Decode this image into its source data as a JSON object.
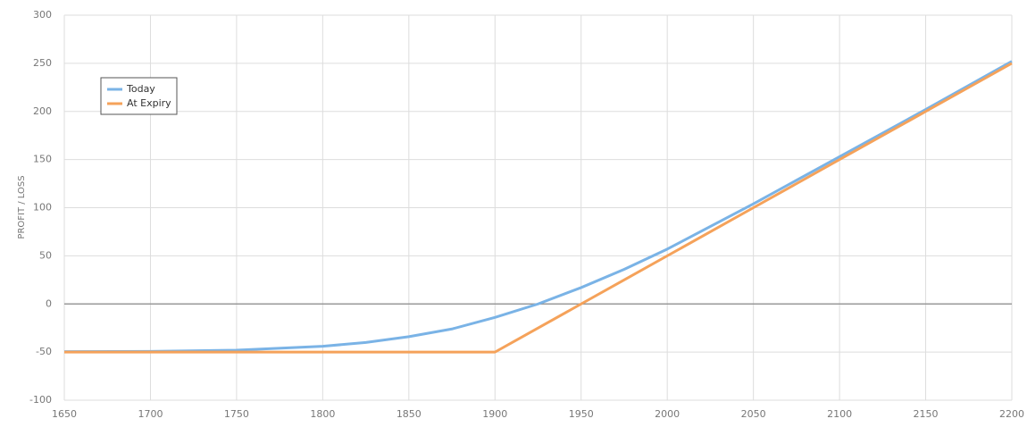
{
  "chart_data": {
    "type": "line",
    "y_label": "PROFIT / LOSS",
    "x": [
      1650,
      1700,
      1750,
      1800,
      1825,
      1850,
      1875,
      1900,
      1925,
      1950,
      1975,
      2000,
      2050,
      2100,
      2150,
      2200
    ],
    "series": [
      {
        "name": "Today",
        "color": "#7ab3e6",
        "values": [
          -49.5,
          -49.3,
          -48,
          -44,
          -40,
          -34,
          -26,
          -14,
          0,
          17,
          36,
          57,
          104,
          153,
          202,
          252
        ]
      },
      {
        "name": "At Expiry",
        "color": "#f5a25a",
        "values": [
          -50,
          -50,
          -50,
          -50,
          -50,
          -50,
          -50,
          -50,
          -25,
          0,
          25,
          50,
          100,
          150,
          200,
          250
        ]
      }
    ],
    "xlim": [
      1650,
      2200
    ],
    "xticks": [
      1650,
      1700,
      1750,
      1800,
      1850,
      1900,
      1950,
      2000,
      2050,
      2100,
      2150,
      2200
    ],
    "ylim": [
      -100,
      300
    ],
    "yticks": [
      -100,
      -50,
      0,
      50,
      100,
      150,
      200,
      250,
      300
    ],
    "grid": true,
    "legend": "top-left"
  }
}
